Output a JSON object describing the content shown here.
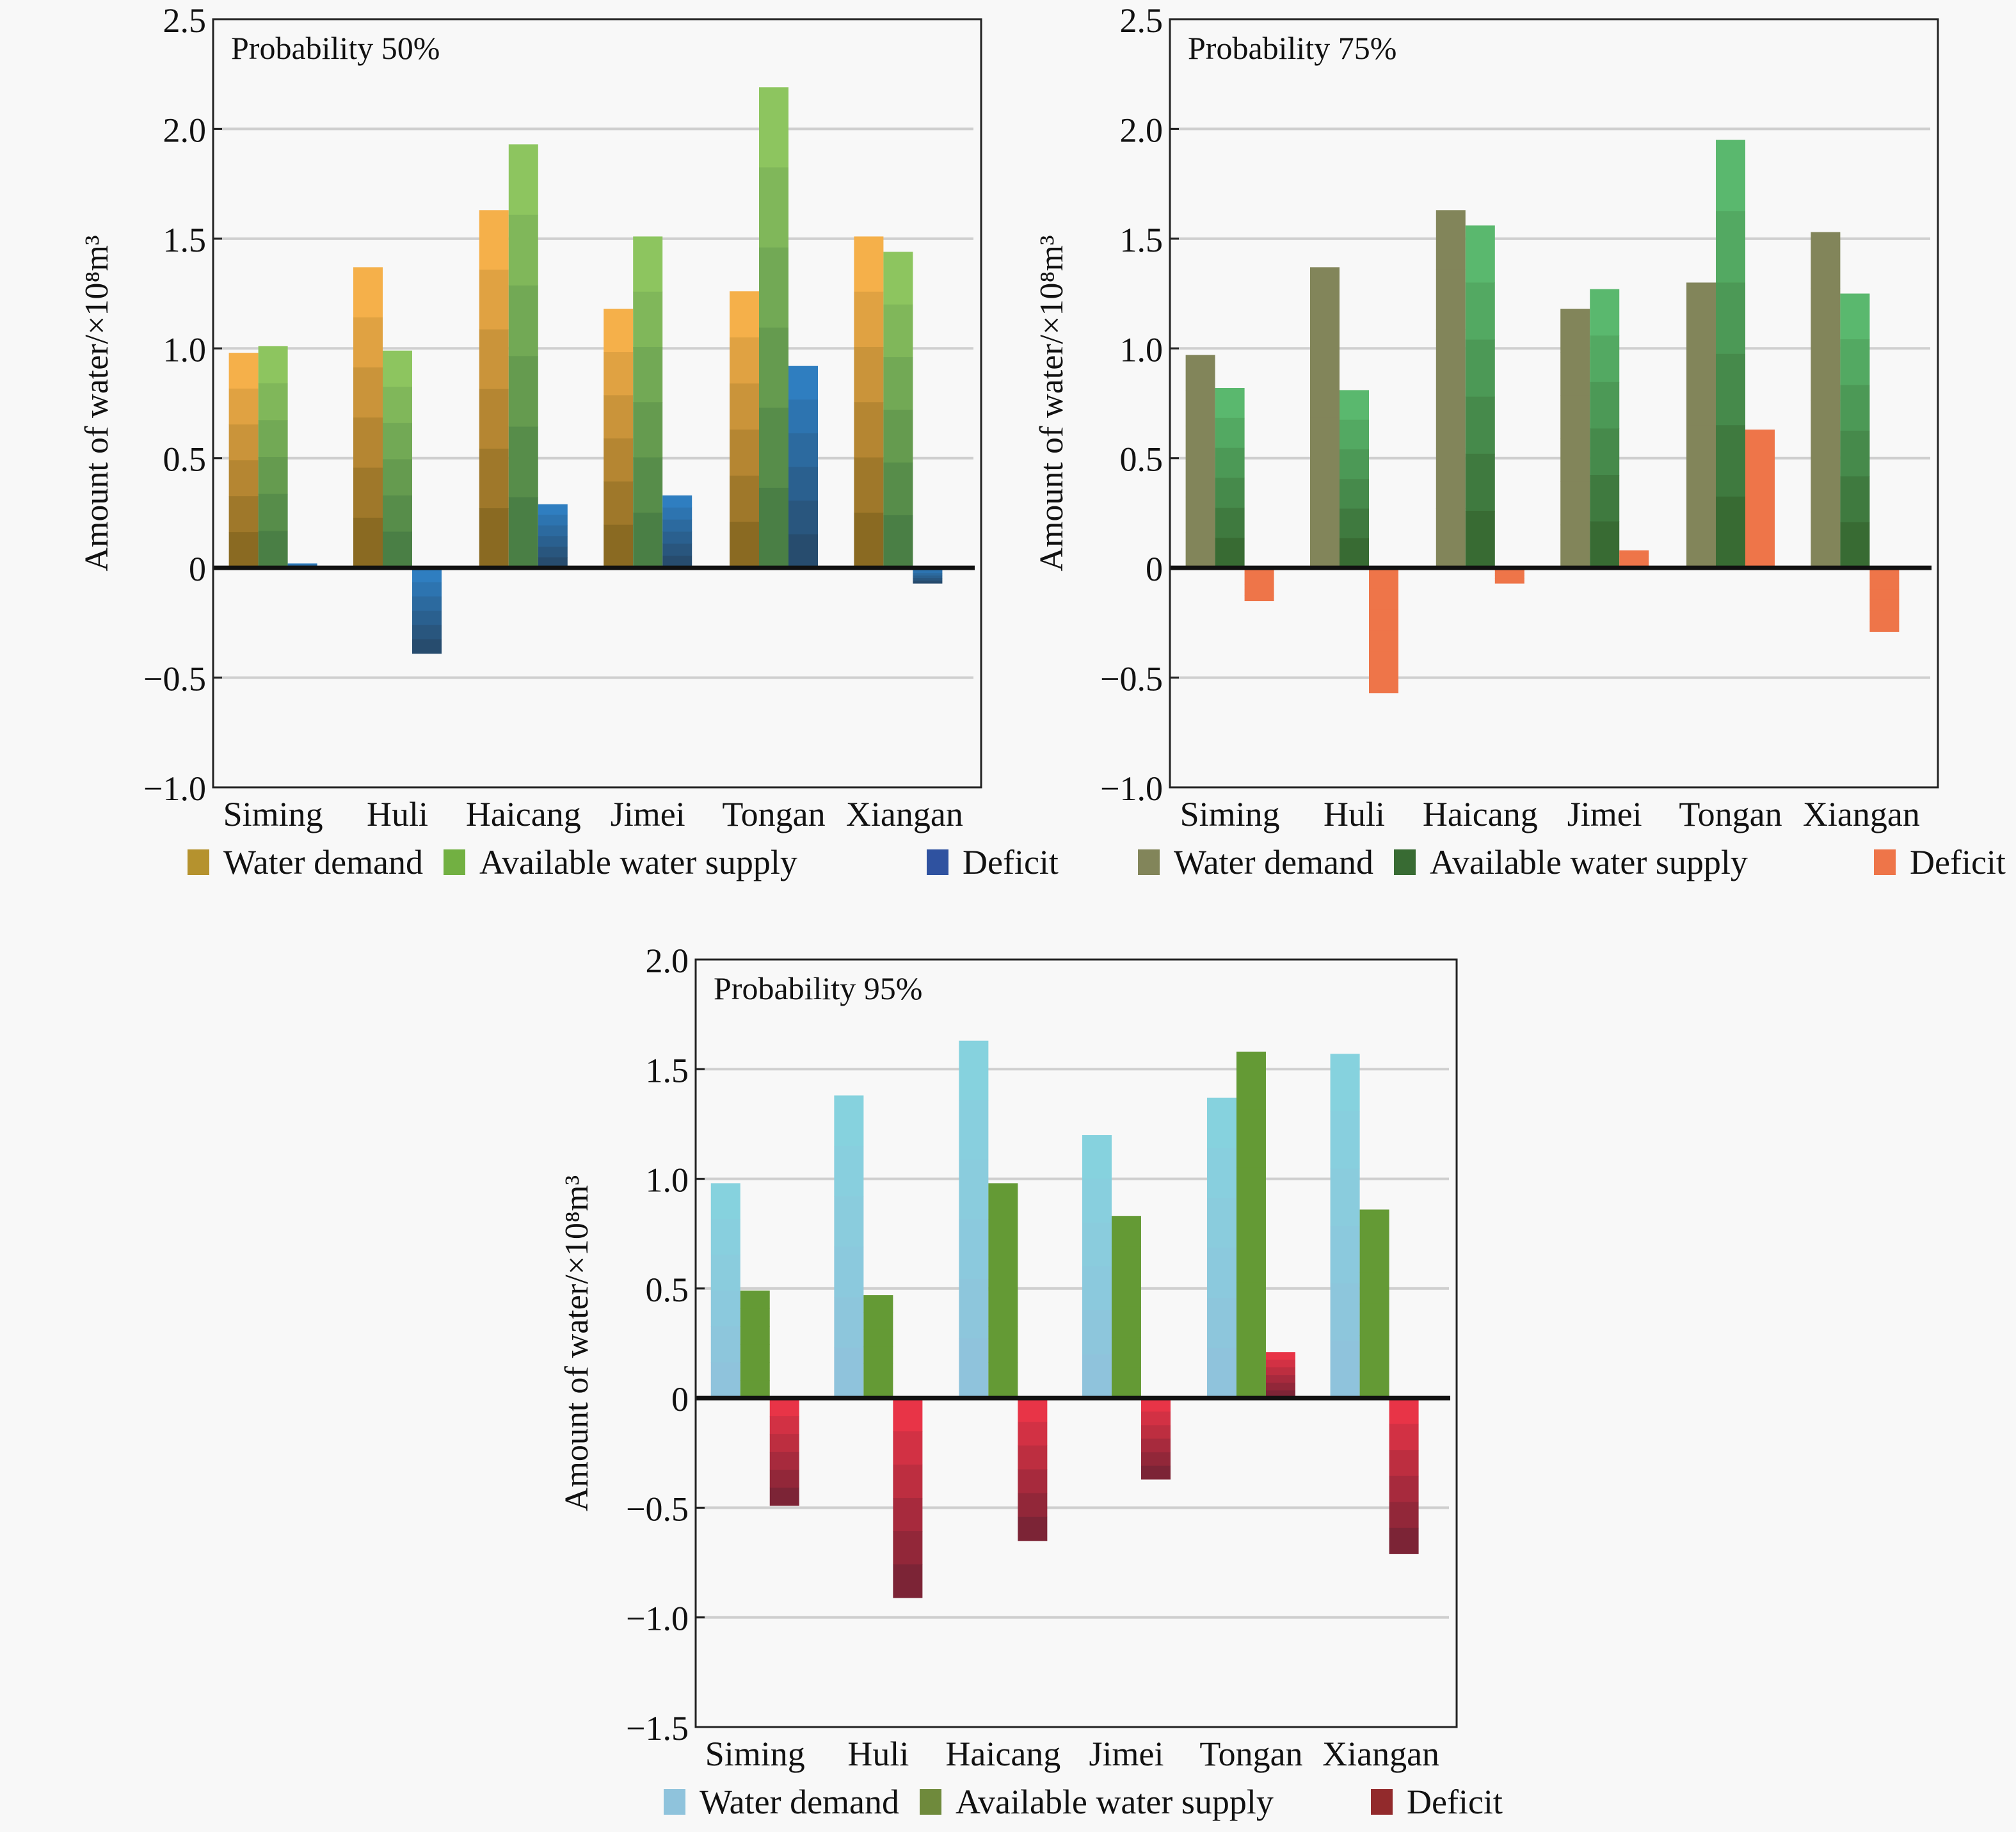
{
  "chart_data": [
    {
      "type": "bar",
      "title": "Probability 50%",
      "xlabel": "",
      "ylabel": "Amount of water/×10⁸m³",
      "ylim": [
        -1.0,
        2.5
      ],
      "yticks": [
        -1.0,
        -0.5,
        0,
        0.5,
        1.0,
        1.5,
        2.0,
        2.5
      ],
      "ytick_labels": [
        "−1.0",
        "−0.5",
        "0",
        "0.5",
        "1.0",
        "1.5",
        "2.0",
        "2.5"
      ],
      "grid": true,
      "legend_position": "bottom",
      "categories": [
        "Siming",
        "Huli",
        "Haicang",
        "Jimei",
        "Tongan",
        "Xiangan"
      ],
      "series": [
        {
          "name": "Water demand",
          "values": [
            0.98,
            1.37,
            1.63,
            1.18,
            1.26,
            1.51
          ],
          "colors": {
            "top": "#f5b04a",
            "bottom": "#8a6a22",
            "legend": "#b5922e"
          }
        },
        {
          "name": "Available water supply",
          "values": [
            1.01,
            0.99,
            1.93,
            1.51,
            2.19,
            1.44
          ],
          "colors": {
            "top": "#8dc55f",
            "bottom": "#4a7f45",
            "legend": "#72b042"
          }
        },
        {
          "name": "Deficit",
          "values": [
            0.02,
            -0.39,
            0.29,
            0.33,
            0.92,
            -0.07
          ],
          "colors": {
            "top": "#2f7ec0",
            "bottom": "#274c6e",
            "legend": "#2f52a0"
          }
        }
      ]
    },
    {
      "type": "bar",
      "title": "Probability 75%",
      "xlabel": "",
      "ylabel": "Amount of water/×10⁸m³",
      "ylim": [
        -1.0,
        2.5
      ],
      "yticks": [
        -1.0,
        -0.5,
        0,
        0.5,
        1.0,
        1.5,
        2.0,
        2.5
      ],
      "ytick_labels": [
        "−1.0",
        "−0.5",
        "0",
        "0.5",
        "1.0",
        "1.5",
        "2.0",
        "2.5"
      ],
      "grid": true,
      "legend_position": "bottom",
      "categories": [
        "Siming",
        "Huli",
        "Haicang",
        "Jimei",
        "Tongan",
        "Xiangan"
      ],
      "series": [
        {
          "name": "Water demand",
          "values": [
            0.97,
            1.37,
            1.63,
            1.18,
            1.3,
            1.53
          ],
          "colors": {
            "top": "#82855a",
            "bottom": "#82855a",
            "legend": "#82855a"
          }
        },
        {
          "name": "Available water supply",
          "values": [
            0.82,
            0.81,
            1.56,
            1.27,
            1.95,
            1.25
          ],
          "colors": {
            "top": "#5ab86e",
            "bottom": "#386b33",
            "legend": "#386b33"
          }
        },
        {
          "name": "Deficit",
          "values": [
            -0.15,
            -0.57,
            -0.07,
            0.08,
            0.63,
            -0.29
          ],
          "colors": {
            "top": "#ee7549",
            "bottom": "#ee7549",
            "legend": "#ee7549"
          }
        }
      ]
    },
    {
      "type": "bar",
      "title": "Probability 95%",
      "xlabel": "",
      "ylabel": "Amount of water/×10⁸m³",
      "ylim": [
        -1.5,
        2.0
      ],
      "yticks": [
        -1.5,
        -1.0,
        -0.5,
        0,
        0.5,
        1.0,
        1.5,
        2.0
      ],
      "ytick_labels": [
        "−1.5",
        "−1.0",
        "−0.5",
        "0",
        "0.5",
        "1.0",
        "1.5",
        "2.0"
      ],
      "grid": true,
      "legend_position": "bottom",
      "categories": [
        "Siming",
        "Huli",
        "Haicang",
        "Jimei",
        "Tongan",
        "Xiangan"
      ],
      "series": [
        {
          "name": "Water demand",
          "values": [
            0.98,
            1.38,
            1.63,
            1.2,
            1.37,
            1.57
          ],
          "colors": {
            "top": "#86d2de",
            "bottom": "#8fc3dc",
            "legend": "#8fc3dc"
          }
        },
        {
          "name": "Available water supply",
          "values": [
            0.49,
            0.47,
            0.98,
            0.83,
            1.58,
            0.86
          ],
          "colors": {
            "top": "#649a35",
            "bottom": "#649a35",
            "legend": "#6f8a3c"
          }
        },
        {
          "name": "Deficit",
          "values": [
            -0.49,
            -0.91,
            -0.65,
            -0.37,
            0.21,
            -0.71
          ],
          "colors": {
            "top": "#e83447",
            "bottom": "#7c2436",
            "legend": "#922a2c"
          }
        }
      ]
    }
  ]
}
